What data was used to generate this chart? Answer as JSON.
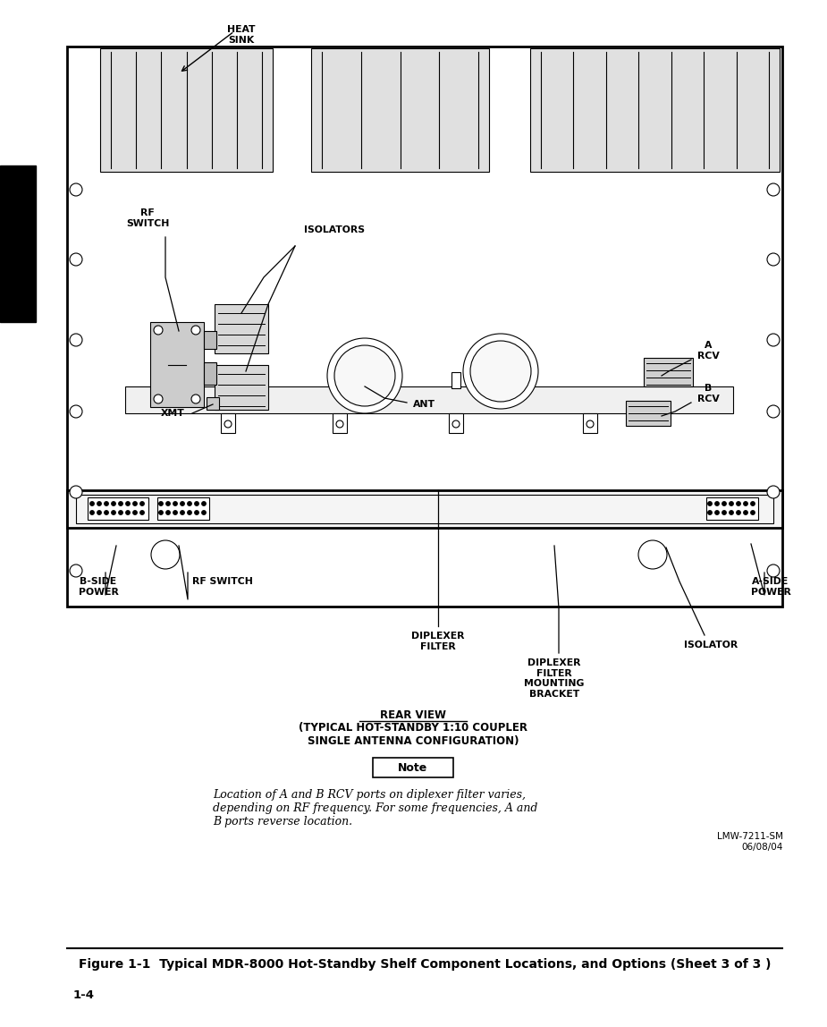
{
  "bg_color": "#ffffff",
  "fig_width": 9.25,
  "fig_height": 11.48,
  "title_caption": "Figure 1-1  Typical MDR-8000 Hot-Standby Shelf Component Locations, and Options (Sheet 3 of 3 )",
  "page_number": "1-4",
  "doc_ref": "LMW-7211-SM\n06/08/04",
  "note_text": "Location of A and B RCV ports on diplexer filter varies,\ndepending on RF frequency. For some frequencies, A and\nB ports reverse location.",
  "rear_view_line1": "REAR VIEW",
  "rear_view_line2": "(TYPICAL HOT-STANDBY 1:10 COUPLER",
  "rear_view_line3": "SINGLE ANTENNA CONFIGURATION)",
  "labels": {
    "HEAT_SINK": "HEAT\nSINK",
    "RF_SWITCH_TOP": "RF\nSWITCH",
    "ISOLATORS": "ISOLATORS",
    "XMT": "XMT",
    "ANT": "ANT",
    "A_RCV": "A\nRCV",
    "B_RCV": "B\nRCV",
    "B_SIDE_POWER": "B-SIDE\nPOWER",
    "RF_SWITCH_BOT": "RF SWITCH",
    "DIPLEXER_FILTER": "DIPLEXER\nFILTER",
    "DIPLEXER_FILTER_MOUNTING": "DIPLEXER\nFILTER\nMOUNTING\nBRACKET",
    "ISOLATOR": "ISOLATOR",
    "A_SIDE_POWER": "A-SIDE\nPOWER"
  }
}
